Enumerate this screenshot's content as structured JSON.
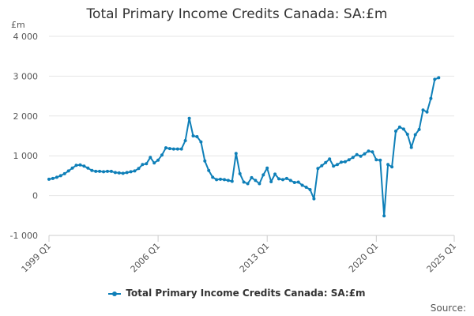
{
  "chart_data": {
    "type": "line",
    "title": "Total Primary Income Credits Canada: SA:£m",
    "ylabel": "£m",
    "xlabel": "",
    "x_unit": "year (decimal, quarterly)",
    "ylim": [
      -1000,
      4000
    ],
    "xlim": [
      1999.0,
      2025.0
    ],
    "y_ticks": [
      {
        "value": 4000,
        "label": "4 000"
      },
      {
        "value": 3000,
        "label": "3 000"
      },
      {
        "value": 2000,
        "label": "2 000"
      },
      {
        "value": 1000,
        "label": "1 000"
      },
      {
        "value": 0,
        "label": "0"
      },
      {
        "value": -1000,
        "label": "-1 000"
      }
    ],
    "x_ticks": [
      {
        "value": 1999.0,
        "label": "1999 Q1"
      },
      {
        "value": 2006.0,
        "label": "2006 Q1"
      },
      {
        "value": 2013.0,
        "label": "2013 Q1"
      },
      {
        "value": 2020.0,
        "label": "2020 Q1"
      },
      {
        "value": 2025.0,
        "label": "2025 Q1"
      }
    ],
    "grid": "horizontal",
    "legend_position": "bottom",
    "series": [
      {
        "name": "Total Primary Income Credits Canada: SA:£m",
        "color": "#0e7fb8",
        "x": [
          1999.0,
          1999.25,
          1999.5,
          1999.75,
          2000.0,
          2000.25,
          2000.5,
          2000.75,
          2001.0,
          2001.25,
          2001.5,
          2001.75,
          2002.0,
          2002.25,
          2002.5,
          2002.75,
          2003.0,
          2003.25,
          2003.5,
          2003.75,
          2004.0,
          2004.25,
          2004.5,
          2004.75,
          2005.0,
          2005.25,
          2005.5,
          2005.75,
          2006.0,
          2006.25,
          2006.5,
          2006.75,
          2007.0,
          2007.25,
          2007.5,
          2007.75,
          2008.0,
          2008.25,
          2008.5,
          2008.75,
          2009.0,
          2009.25,
          2009.5,
          2009.75,
          2010.0,
          2010.25,
          2010.5,
          2010.75,
          2011.0,
          2011.25,
          2011.5,
          2011.75,
          2012.0,
          2012.25,
          2012.5,
          2012.75,
          2013.0,
          2013.25,
          2013.5,
          2013.75,
          2014.0,
          2014.25,
          2014.5,
          2014.75,
          2015.0,
          2015.25,
          2015.5,
          2015.75,
          2016.0,
          2016.25,
          2016.5,
          2016.75,
          2017.0,
          2017.25,
          2017.5,
          2017.75,
          2018.0,
          2018.25,
          2018.5,
          2018.75,
          2019.0,
          2019.25,
          2019.5,
          2019.75,
          2020.0,
          2020.25,
          2020.5,
          2020.75,
          2021.0,
          2021.25,
          2021.5,
          2021.75,
          2022.0,
          2022.25,
          2022.5,
          2022.75,
          2023.0,
          2023.25,
          2023.5,
          2023.75,
          2024.0
        ],
        "values": [
          410,
          430,
          460,
          500,
          550,
          620,
          690,
          760,
          770,
          740,
          690,
          630,
          610,
          610,
          600,
          610,
          610,
          580,
          570,
          560,
          580,
          600,
          620,
          680,
          780,
          800,
          960,
          820,
          890,
          1020,
          1200,
          1180,
          1170,
          1170,
          1170,
          1380,
          1940,
          1500,
          1480,
          1350,
          870,
          630,
          460,
          400,
          410,
          400,
          380,
          360,
          1060,
          550,
          340,
          300,
          450,
          380,
          300,
          520,
          690,
          350,
          540,
          420,
          400,
          430,
          380,
          330,
          340,
          260,
          210,
          150,
          -80,
          680,
          750,
          830,
          920,
          740,
          780,
          840,
          850,
          900,
          960,
          1030,
          990,
          1050,
          1120,
          1100,
          900,
          890,
          -510,
          780,
          720,
          1620,
          1720,
          1670,
          1540,
          1210,
          1530,
          1660,
          2150,
          2100,
          2440,
          2920,
          2960
        ]
      }
    ]
  },
  "legend": {
    "label": "Total Primary Income Credits Canada: SA:£m"
  },
  "source": {
    "label": "Source:"
  }
}
